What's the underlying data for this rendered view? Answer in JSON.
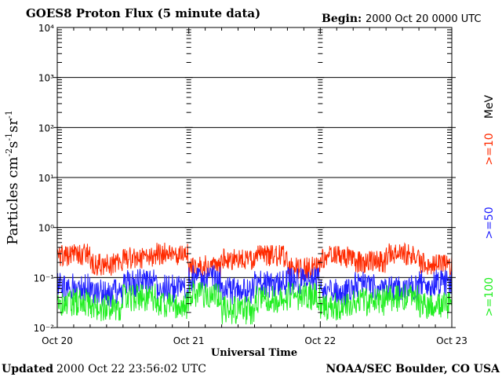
{
  "header": {
    "title": "GOES8 Proton Flux (5 minute data)",
    "begin_label": "Begin:",
    "begin_value": "2000 Oct 20 0000 UTC"
  },
  "footer": {
    "updated_label": "Updated",
    "updated_value": "2000 Oct 22 23:56:02 UTC",
    "credit": "NOAA/SEC Boulder, CO USA"
  },
  "legend": {
    "unit": "MeV",
    "s10": ">=10",
    "s50": ">=50",
    "s100": ">=100"
  },
  "chart_data": {
    "type": "line",
    "title": "GOES8 Proton Flux (5 minute data)",
    "xlabel": "Universal Time",
    "ylabel": "Particles cm-2s-1sr-1",
    "y_scale": "log",
    "ylim": [
      0.01,
      10000
    ],
    "xlim": [
      "2000-10-20",
      "2000-10-23"
    ],
    "x_ticks": [
      "Oct 20",
      "Oct 21",
      "Oct 22",
      "Oct 23"
    ],
    "y_ticks": [
      "10⁻²",
      "10⁻¹",
      "10⁰",
      "10¹",
      "10²",
      "10³",
      "10⁴"
    ],
    "grid": true,
    "legend_position": "right",
    "series": [
      {
        "name": ">=10 MeV",
        "color": "#ff2a00",
        "typical_range": [
          0.08,
          0.5
        ],
        "sample_values": [
          0.45,
          0.15,
          0.3,
          0.5,
          0.12,
          0.25,
          0.4,
          0.1,
          0.35,
          0.2,
          0.5,
          0.15
        ]
      },
      {
        "name": ">=50 MeV",
        "color": "#2020ff",
        "typical_range": [
          0.02,
          0.2
        ],
        "sample_values": [
          0.06,
          0.03,
          0.1,
          0.05,
          0.15,
          0.04,
          0.08,
          0.12,
          0.03,
          0.07,
          0.05,
          0.09
        ]
      },
      {
        "name": ">=100 MeV",
        "color": "#22ee22",
        "typical_range": [
          0.01,
          0.1
        ],
        "sample_values": [
          0.03,
          0.015,
          0.05,
          0.02,
          0.08,
          0.012,
          0.04,
          0.06,
          0.018,
          0.03,
          0.05,
          0.02
        ]
      }
    ]
  }
}
